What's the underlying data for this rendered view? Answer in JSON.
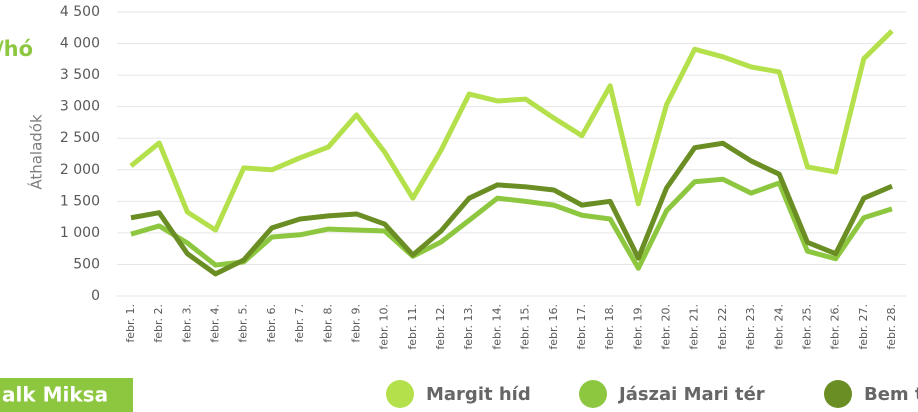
{
  "page": {
    "heading_fragment": "/hó",
    "tab_label": "alk Miksa"
  },
  "chart_data": {
    "type": "line",
    "ylabel": "Áthaladók",
    "categories": [
      "febr. 1.",
      "febr. 2.",
      "febr. 3.",
      "febr. 4.",
      "febr. 5.",
      "febr. 6.",
      "febr. 7.",
      "febr. 8.",
      "febr. 9.",
      "febr. 10.",
      "febr. 11.",
      "febr. 12.",
      "febr. 13.",
      "febr. 14.",
      "febr. 15.",
      "febr. 16.",
      "febr. 17.",
      "febr. 18.",
      "febr. 19.",
      "febr. 20.",
      "febr. 21.",
      "febr. 22.",
      "febr. 23.",
      "febr. 24.",
      "febr. 25.",
      "febr. 26.",
      "febr. 27.",
      "febr. 28."
    ],
    "series": [
      {
        "name": "Margit híd",
        "color": "#b4e04c",
        "values": [
          2060,
          2425,
          1330,
          1045,
          2030,
          2000,
          2190,
          2360,
          2870,
          2280,
          1550,
          2310,
          3200,
          3090,
          3120,
          2820,
          2540,
          3330,
          1460,
          3030,
          3910,
          3790,
          3630,
          3550,
          2045,
          1965,
          3760,
          4200
        ]
      },
      {
        "name": "Jászai Mari tér",
        "color": "#8dc63f",
        "values": [
          980,
          1110,
          840,
          490,
          540,
          935,
          970,
          1060,
          1045,
          1030,
          630,
          855,
          1200,
          1550,
          1500,
          1440,
          1280,
          1220,
          440,
          1350,
          1810,
          1850,
          1630,
          1790,
          710,
          590,
          1240,
          1380
        ]
      },
      {
        "name": "Bem tér",
        "color": "#6a8e23",
        "values": [
          1240,
          1320,
          670,
          350,
          570,
          1080,
          1220,
          1270,
          1300,
          1140,
          650,
          1030,
          1550,
          1760,
          1730,
          1680,
          1440,
          1500,
          600,
          1710,
          2350,
          2420,
          2140,
          1930,
          850,
          670,
          1550,
          1740
        ]
      }
    ],
    "ylim": [
      0,
      4500
    ],
    "yticks": [
      0,
      500,
      {
        "value": 1000,
        "label": "1 000"
      },
      {
        "value": 1500,
        "label": "1 500"
      },
      {
        "value": 2000,
        "label": "2 000"
      },
      {
        "value": 2500,
        "label": "2 500"
      },
      {
        "value": 3000,
        "label": "3 000"
      },
      {
        "value": 3500,
        "label": "3 500"
      },
      {
        "value": 4000,
        "label": "4 000"
      },
      {
        "value": 4500,
        "label": "4 500"
      }
    ],
    "grid": true
  }
}
